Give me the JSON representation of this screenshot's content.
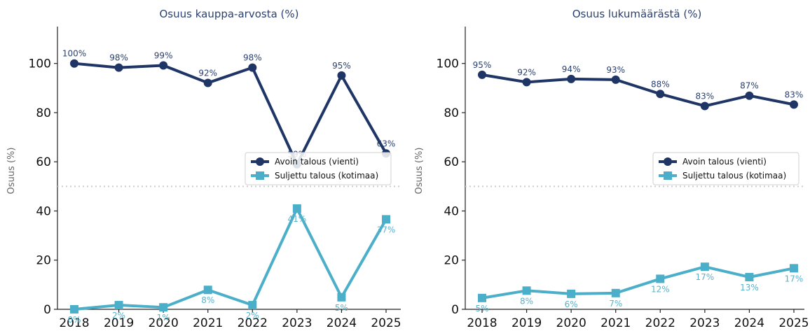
{
  "colors": {
    "open": "#1f3566",
    "closed": "#4bafc9",
    "threshold": "#cccccc"
  },
  "chart_data": [
    {
      "type": "line",
      "title": "Osuus kauppa-arvosta (%)",
      "ylabel": "Osuus (%)",
      "categories": [
        "2018",
        "2019",
        "2020",
        "2021",
        "2022",
        "2023",
        "2024",
        "2025"
      ],
      "ylim": [
        0,
        115
      ],
      "yticks": [
        0,
        20,
        40,
        60,
        80,
        100
      ],
      "threshold": 50,
      "legend_position": "center-right",
      "series": [
        {
          "name": "Avoin talous (vienti)",
          "key": "open",
          "marker": "circle",
          "values": [
            100,
            98.3,
            99.2,
            92.1,
            98.3,
            59,
            95.1,
            63.4
          ],
          "labels": [
            "100%",
            "98%",
            "99%",
            "92%",
            "98%",
            "59%",
            "95%",
            "63%"
          ]
        },
        {
          "name": "Suljettu talous (kotimaa)",
          "key": "closed",
          "marker": "square",
          "values": [
            0,
            1.7,
            0.8,
            7.9,
            1.7,
            41,
            4.9,
            36.6
          ],
          "labels": [
            "0%",
            "2%",
            "1%",
            "8%",
            "2%",
            "41%",
            "5%",
            "37%"
          ]
        }
      ]
    },
    {
      "type": "line",
      "title": "Osuus lukumäärästä (%)",
      "ylabel": "Osuus (%)",
      "categories": [
        "2018",
        "2019",
        "2020",
        "2021",
        "2022",
        "2023",
        "2024",
        "2025"
      ],
      "ylim": [
        0,
        115
      ],
      "yticks": [
        0,
        20,
        40,
        60,
        80,
        100
      ],
      "threshold": 50,
      "legend_position": "center-right",
      "series": [
        {
          "name": "Avoin talous (vienti)",
          "key": "open",
          "marker": "circle",
          "values": [
            95.4,
            92.4,
            93.7,
            93.4,
            87.6,
            82.7,
            86.9,
            83.3
          ],
          "labels": [
            "95%",
            "92%",
            "94%",
            "93%",
            "88%",
            "83%",
            "87%",
            "83%"
          ]
        },
        {
          "name": "Suljettu talous (kotimaa)",
          "key": "closed",
          "marker": "square",
          "values": [
            4.6,
            7.6,
            6.3,
            6.6,
            12.4,
            17.3,
            13.1,
            16.7
          ],
          "labels": [
            "5%",
            "8%",
            "6%",
            "7%",
            "12%",
            "17%",
            "13%",
            "17%"
          ]
        }
      ]
    }
  ]
}
